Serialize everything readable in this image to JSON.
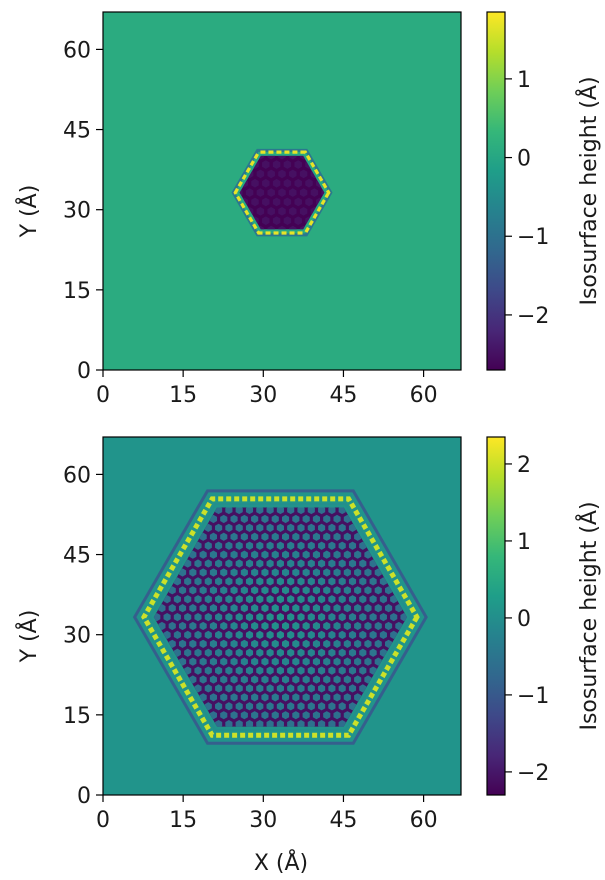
{
  "colors": {
    "background": "#21918c",
    "viridis": [
      "#440154",
      "#482777",
      "#3e4989",
      "#31688e",
      "#26828e",
      "#1f9e89",
      "#35b779",
      "#6ece58",
      "#b5de2b",
      "#fde725"
    ]
  },
  "chart_data": [
    {
      "type": "heatmap",
      "title": "",
      "xlabel": "",
      "ylabel": "Y (Å)",
      "xlim": [
        0,
        67
      ],
      "ylim": [
        0,
        67
      ],
      "x_ticks": [
        0,
        15,
        30,
        45,
        60
      ],
      "y_ticks": [
        0,
        15,
        30,
        45,
        60
      ],
      "x_tick_labels": [
        "0",
        "15",
        "30",
        "45",
        "60"
      ],
      "y_tick_labels": [
        "0",
        "15",
        "30",
        "45",
        "60"
      ],
      "background_value": 0.1,
      "hexagon": {
        "center": [
          33.5,
          33.2
        ],
        "circumradius": 8.3,
        "interior_value": -2.7,
        "hole_value": -2.5,
        "rim_value": 1.7
      },
      "colorbar": {
        "label": "Isosurface height (Å)",
        "vmin": -2.7,
        "vmax": 1.85,
        "ticks": [
          -2,
          -1,
          0,
          1
        ],
        "tick_labels": [
          "−2",
          "−1",
          "0",
          "1"
        ]
      }
    },
    {
      "type": "heatmap",
      "title": "",
      "xlabel": "X (Å)",
      "ylabel": "Y (Å)",
      "xlim": [
        0,
        67
      ],
      "ylim": [
        0,
        67
      ],
      "x_ticks": [
        0,
        15,
        30,
        45,
        60
      ],
      "y_ticks": [
        0,
        15,
        30,
        45,
        60
      ],
      "x_tick_labels": [
        "0",
        "15",
        "30",
        "45",
        "60"
      ],
      "y_tick_labels": [
        "0",
        "15",
        "30",
        "45",
        "60"
      ],
      "background_value": 0.1,
      "hexagon": {
        "center": [
          33.2,
          33.3
        ],
        "circumradius": 24.8,
        "interior_value": -2.1,
        "hole_value": -0.4,
        "rim_value": 2.0
      },
      "colorbar": {
        "label": "Isosurface height (Å)",
        "vmin": -2.3,
        "vmax": 2.35,
        "ticks": [
          -2,
          -1,
          0,
          1,
          2
        ],
        "tick_labels": [
          "−2",
          "−1",
          "0",
          "1",
          "2"
        ]
      }
    }
  ]
}
